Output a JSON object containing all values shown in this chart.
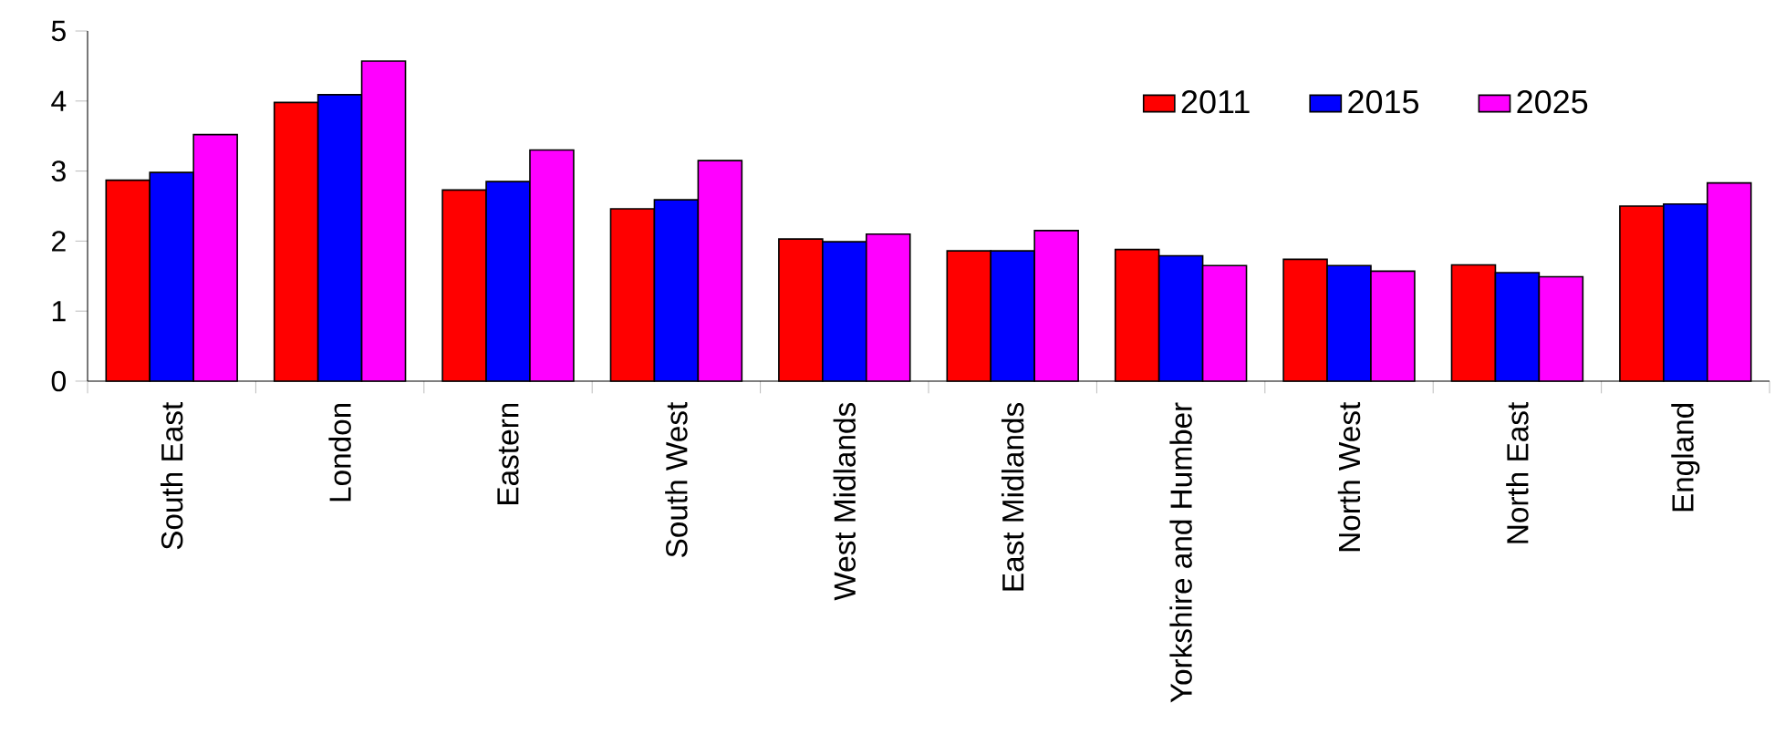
{
  "chart_data": {
    "type": "bar",
    "categories": [
      "South East",
      "London",
      "Eastern",
      "South West",
      "West Midlands",
      "East Midlands",
      "Yorkshire and Humber",
      "North West",
      "North East",
      "England"
    ],
    "series": [
      {
        "name": "2011",
        "color": "#ff0000",
        "values": [
          2.87,
          3.98,
          2.73,
          2.46,
          2.03,
          1.86,
          1.88,
          1.74,
          1.66,
          2.5
        ]
      },
      {
        "name": "2015",
        "color": "#0000ff",
        "values": [
          2.98,
          4.09,
          2.85,
          2.59,
          1.99,
          1.86,
          1.79,
          1.65,
          1.55,
          2.53
        ]
      },
      {
        "name": "2025",
        "color": "#ff00ff",
        "values": [
          3.52,
          4.57,
          3.3,
          3.15,
          2.1,
          2.15,
          1.65,
          1.57,
          1.49,
          2.83
        ]
      }
    ],
    "ylim": [
      0,
      5
    ],
    "yticks": [
      0,
      1,
      2,
      3,
      4,
      5
    ],
    "grid": false,
    "legend": "top right"
  }
}
